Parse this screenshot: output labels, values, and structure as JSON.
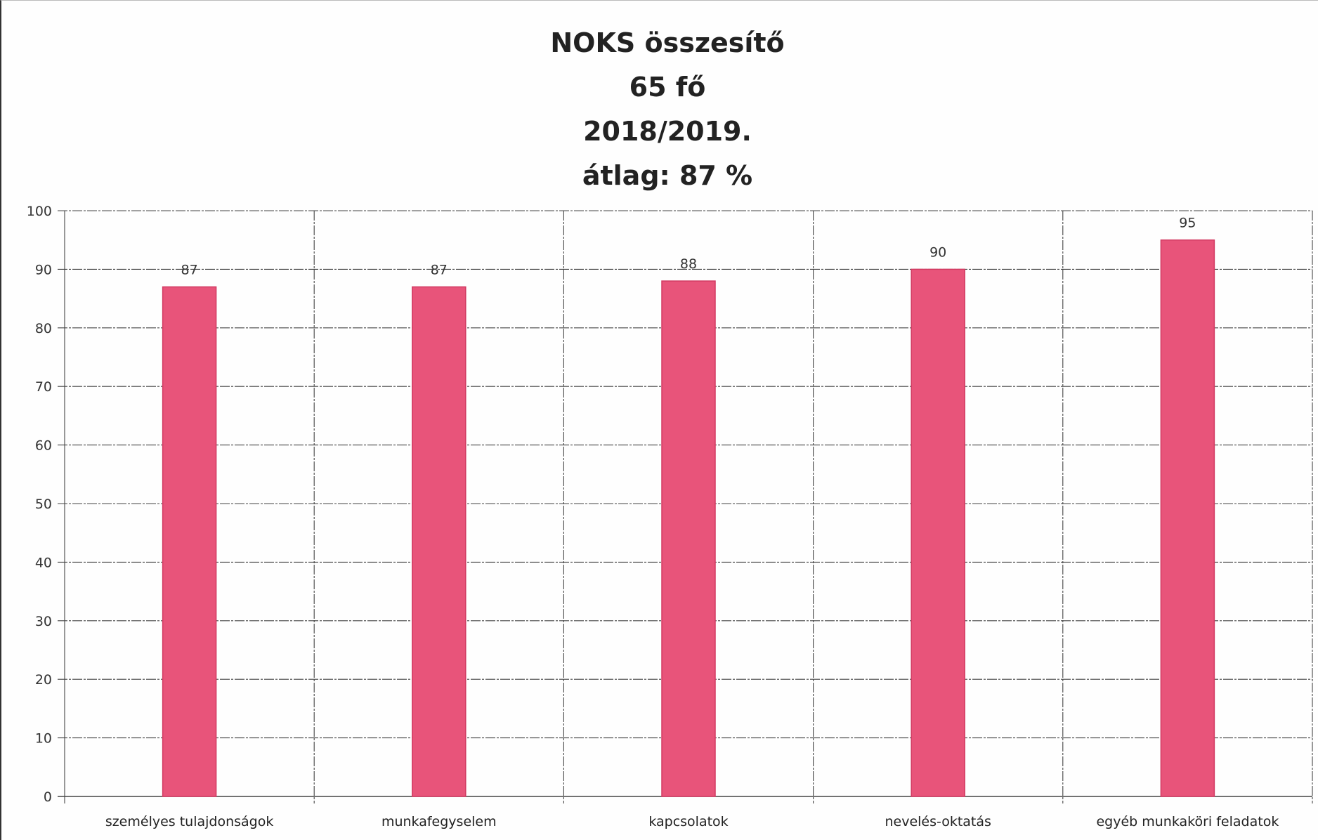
{
  "chart_data": {
    "type": "bar",
    "title_lines": [
      "NOKS összesítő",
      "65 fő",
      "2018/2019.",
      "átlag: 87 %"
    ],
    "categories": [
      "személyes tulajdonságok",
      "munkafegyselem",
      "kapcsolatok",
      "nevelés-oktatás",
      "egyéb munkaköri feladatok"
    ],
    "values": [
      87,
      87,
      88,
      90,
      95
    ],
    "data_labels": [
      "87",
      "87",
      "88",
      "90",
      "95"
    ],
    "ylim": [
      0,
      100
    ],
    "yticks": [
      0,
      10,
      20,
      30,
      40,
      50,
      60,
      70,
      80,
      90,
      100
    ],
    "xlabel": "",
    "ylabel": "",
    "grid": true,
    "bar_color": "#e8547a",
    "grid_color": "#444444"
  }
}
